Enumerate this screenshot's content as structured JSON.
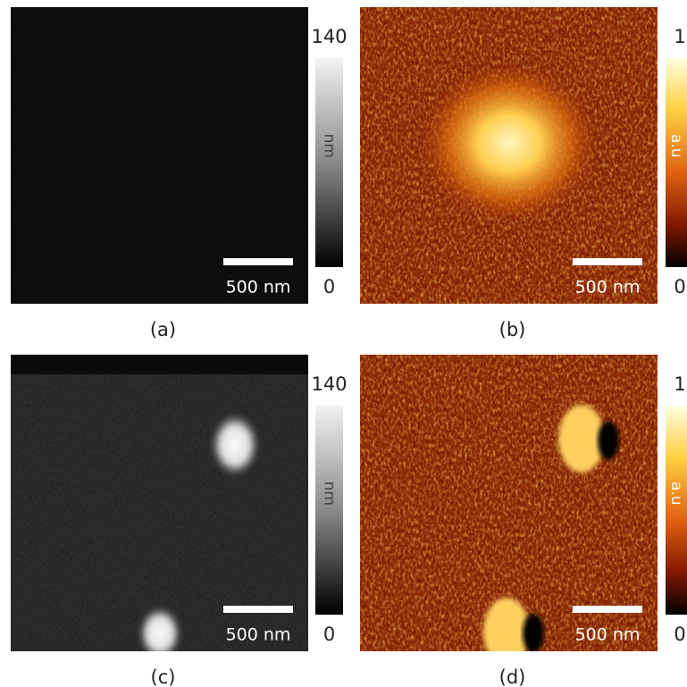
{
  "panels": [
    {
      "label": "(a)",
      "scale_bar": "500 nm",
      "colormap": "gray",
      "colorbar": {
        "max": 140,
        "min": 0,
        "unit": "nm"
      }
    },
    {
      "label": "(b)",
      "scale_bar": "500 nm",
      "colormap": "hot",
      "colorbar": {
        "max": 1,
        "min": 0,
        "unit": "a.u"
      }
    },
    {
      "label": "(c)",
      "scale_bar": "500 nm",
      "colormap": "gray",
      "colorbar": {
        "max": 140,
        "min": 0,
        "unit": "nm"
      }
    },
    {
      "label": "(d)",
      "scale_bar": "500 nm",
      "colormap": "hot",
      "colorbar": {
        "max": 1,
        "min": 0,
        "unit": "a.u"
      }
    }
  ]
}
